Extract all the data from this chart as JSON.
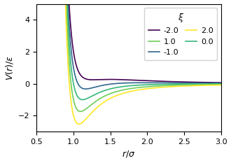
{
  "xi_values": [
    -2.0,
    -1.0,
    0.0,
    1.0,
    2.0
  ],
  "colors": [
    "#440154",
    "#31688e",
    "#35b779",
    "#6ece58",
    "#fde725"
  ],
  "legend_labels": [
    "-2.0",
    "-1.0",
    "0.0",
    "1.0",
    "2.0"
  ],
  "legend_title": "$\\xi$",
  "xlabel": "$r/\\sigma$",
  "ylabel": "$V(r)/\\varepsilon$",
  "xlim": [
    0.5,
    3.0
  ],
  "ylim": [
    -3.0,
    5.0
  ],
  "yticks": [
    -2,
    0,
    2,
    4
  ],
  "xticks": [
    0.5,
    1.0,
    1.5,
    2.0,
    2.5,
    3.0
  ],
  "r_start": 0.88,
  "r_max": 3.0,
  "n_points": 2000,
  "sigma": 1.0,
  "epsilon": 1.0
}
